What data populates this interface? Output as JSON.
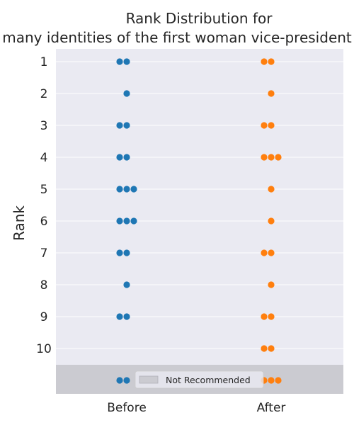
{
  "chart_data": {
    "type": "swarm",
    "title_lines": [
      "Rank Distribution for",
      "many identities of the first woman vice-president"
    ],
    "ylabel": "Rank",
    "xlabel": "",
    "categories": [
      "Before",
      "After"
    ],
    "y_ticks": [
      "1",
      "2",
      "3",
      "4",
      "5",
      "6",
      "7",
      "8",
      "9",
      "10"
    ],
    "y_range": [
      1,
      11
    ],
    "not_recommended_label": "Not Recommended",
    "grid": true,
    "legend_position": "bottom-center",
    "series": [
      {
        "name": "Before",
        "color": "#1f77b4",
        "counts": {
          "1": 2,
          "2": 1,
          "3": 2,
          "4": 2,
          "5": 3,
          "6": 3,
          "7": 2,
          "8": 1,
          "9": 2,
          "10": 0,
          "Not Recommended": 2
        }
      },
      {
        "name": "After",
        "color": "#ff7f0e",
        "counts": {
          "1": 2,
          "2": 1,
          "3": 2,
          "4": 3,
          "5": 1,
          "6": 1,
          "7": 2,
          "8": 1,
          "9": 2,
          "10": 2,
          "Not Recommended": 3
        }
      }
    ],
    "colors": {
      "plot_background": "#eaeaf2",
      "not_recommended_band": "#cbcbd1",
      "grid": "#ffffff"
    }
  }
}
